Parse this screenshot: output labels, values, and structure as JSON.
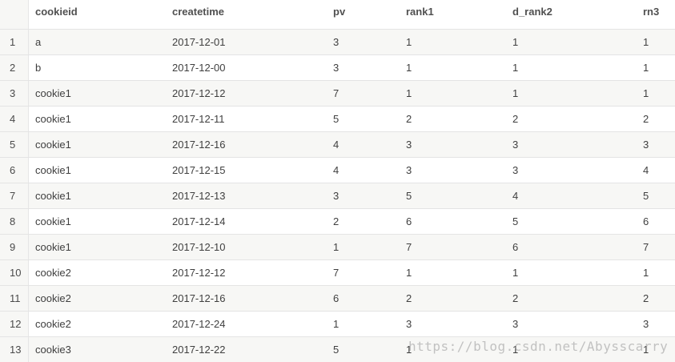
{
  "table": {
    "columns": {
      "index": "",
      "cookieid": "cookieid",
      "createtime": "createtime",
      "pv": "pv",
      "rank1": "rank1",
      "d_rank2": "d_rank2",
      "rn3": "rn3"
    },
    "rows": [
      {
        "index": "1",
        "cookieid": "a",
        "createtime": "2017-12-01",
        "pv": "3",
        "rank1": "1",
        "d_rank2": "1",
        "rn3": "1"
      },
      {
        "index": "2",
        "cookieid": "b",
        "createtime": "2017-12-00",
        "pv": "3",
        "rank1": "1",
        "d_rank2": "1",
        "rn3": "1"
      },
      {
        "index": "3",
        "cookieid": "cookie1",
        "createtime": "2017-12-12",
        "pv": "7",
        "rank1": "1",
        "d_rank2": "1",
        "rn3": "1"
      },
      {
        "index": "4",
        "cookieid": "cookie1",
        "createtime": "2017-12-11",
        "pv": "5",
        "rank1": "2",
        "d_rank2": "2",
        "rn3": "2"
      },
      {
        "index": "5",
        "cookieid": "cookie1",
        "createtime": "2017-12-16",
        "pv": "4",
        "rank1": "3",
        "d_rank2": "3",
        "rn3": "3"
      },
      {
        "index": "6",
        "cookieid": "cookie1",
        "createtime": "2017-12-15",
        "pv": "4",
        "rank1": "3",
        "d_rank2": "3",
        "rn3": "4"
      },
      {
        "index": "7",
        "cookieid": "cookie1",
        "createtime": "2017-12-13",
        "pv": "3",
        "rank1": "5",
        "d_rank2": "4",
        "rn3": "5"
      },
      {
        "index": "8",
        "cookieid": "cookie1",
        "createtime": "2017-12-14",
        "pv": "2",
        "rank1": "6",
        "d_rank2": "5",
        "rn3": "6"
      },
      {
        "index": "9",
        "cookieid": "cookie1",
        "createtime": "2017-12-10",
        "pv": "1",
        "rank1": "7",
        "d_rank2": "6",
        "rn3": "7"
      },
      {
        "index": "10",
        "cookieid": "cookie2",
        "createtime": "2017-12-12",
        "pv": "7",
        "rank1": "1",
        "d_rank2": "1",
        "rn3": "1"
      },
      {
        "index": "11",
        "cookieid": "cookie2",
        "createtime": "2017-12-16",
        "pv": "6",
        "rank1": "2",
        "d_rank2": "2",
        "rn3": "2"
      },
      {
        "index": "12",
        "cookieid": "cookie2",
        "createtime": "2017-12-24",
        "pv": "1",
        "rank1": "3",
        "d_rank2": "3",
        "rn3": "3"
      },
      {
        "index": "13",
        "cookieid": "cookie3",
        "createtime": "2017-12-22",
        "pv": "5",
        "rank1": "1",
        "d_rank2": "1",
        "rn3": "1"
      }
    ]
  },
  "watermark": "https://blog.csdn.net/Abysscarry",
  "colors": {
    "stripe": "#f7f7f5",
    "border": "#e4e4e4",
    "text": "#3f3f3f"
  }
}
